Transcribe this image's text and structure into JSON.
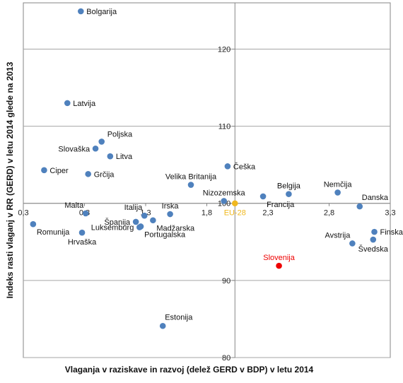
{
  "chart_data": {
    "type": "scatter",
    "title": "",
    "xlabel": "Vlaganja v raziskave in razvoj (delež GERD v BDP) v letu 2014",
    "ylabel": "Indeks rasti vlaganj v RR (GERD) v letu 2014 glede na 2013",
    "xlim": [
      0.3,
      3.3
    ],
    "ylim": [
      80,
      126
    ],
    "x_axis_crosses_at_y": 100,
    "y_axis_crosses_at_x": 2.03,
    "x_ticks": [
      0.3,
      0.8,
      1.3,
      1.8,
      2.3,
      2.8,
      3.3
    ],
    "x_tick_labels": [
      "0,3",
      "0,8",
      "1,3",
      "1,8",
      "2,3",
      "2,8",
      "3,3"
    ],
    "y_ticks": [
      80,
      90,
      100,
      110,
      120
    ],
    "y_tick_labels": [
      "80",
      "90",
      "100",
      "110",
      "120"
    ],
    "grid": "horizontal",
    "colors": {
      "default": "#4f81bd",
      "eu": "#f0b81f",
      "highlight": "#ee0000",
      "grid": "#a6a6a6",
      "axis": "#868686"
    },
    "series": [
      {
        "points": [
          {
            "label": "Bolgarija",
            "x": 0.77,
            "y": 124.9,
            "color": "#4f81bd",
            "anchor": "right"
          },
          {
            "label": "Latvija",
            "x": 0.66,
            "y": 113.0,
            "color": "#4f81bd",
            "anchor": "right"
          },
          {
            "label": "Poljska",
            "x": 0.94,
            "y": 108.0,
            "color": "#4f81bd",
            "anchor": "right-up"
          },
          {
            "label": "Slovaška",
            "x": 0.89,
            "y": 107.1,
            "color": "#4f81bd",
            "anchor": "left"
          },
          {
            "label": "Litva",
            "x": 1.01,
            "y": 106.1,
            "color": "#4f81bd",
            "anchor": "right"
          },
          {
            "label": "Ciper",
            "x": 0.47,
            "y": 104.3,
            "color": "#4f81bd",
            "anchor": "right"
          },
          {
            "label": "Grčija",
            "x": 0.83,
            "y": 103.8,
            "color": "#4f81bd",
            "anchor": "right"
          },
          {
            "label": "Velika Britanija",
            "x": 1.67,
            "y": 102.4,
            "color": "#4f81bd",
            "anchor": "above"
          },
          {
            "label": "Češka",
            "x": 1.97,
            "y": 104.8,
            "color": "#4f81bd",
            "anchor": "right"
          },
          {
            "label": "Nizozemska",
            "x": 1.94,
            "y": 100.3,
            "color": "#4f81bd",
            "anchor": "above"
          },
          {
            "label": "Belgija",
            "x": 2.47,
            "y": 101.2,
            "color": "#4f81bd",
            "anchor": "above"
          },
          {
            "label": "Francija",
            "x": 2.26,
            "y": 100.9,
            "color": "#4f81bd",
            "anchor": "below-right"
          },
          {
            "label": "Nemčija",
            "x": 2.87,
            "y": 101.4,
            "color": "#4f81bd",
            "anchor": "above"
          },
          {
            "label": "Danska",
            "x": 3.05,
            "y": 99.6,
            "color": "#4f81bd",
            "anchor": "above-right"
          },
          {
            "label": "EU-28",
            "x": 2.03,
            "y": 100.0,
            "color": "#f0b81f",
            "anchor": "below"
          },
          {
            "label": "Malta",
            "x": 0.81,
            "y": 98.7,
            "color": "#4f81bd",
            "anchor": "above-left"
          },
          {
            "label": "Irska",
            "x": 1.5,
            "y": 98.6,
            "color": "#4f81bd",
            "anchor": "above"
          },
          {
            "label": "Italija",
            "x": 1.29,
            "y": 98.4,
            "color": "#4f81bd",
            "anchor": "above-left"
          },
          {
            "label": "Španija",
            "x": 1.22,
            "y": 97.6,
            "color": "#4f81bd",
            "anchor": "left"
          },
          {
            "label": "Madžarska",
            "x": 1.36,
            "y": 97.8,
            "color": "#4f81bd",
            "anchor": "below-right"
          },
          {
            "label": "Portugalska",
            "x": 1.26,
            "y": 97.0,
            "color": "#4f81bd",
            "anchor": "below-right"
          },
          {
            "label": "Romunija",
            "x": 0.38,
            "y": 97.3,
            "color": "#4f81bd",
            "anchor": "below-right"
          },
          {
            "label": "Luksemburg",
            "x": 1.25,
            "y": 96.9,
            "color": "#4f81bd",
            "anchor": "left"
          },
          {
            "label": "Hrvaška",
            "x": 0.78,
            "y": 96.2,
            "color": "#4f81bd",
            "anchor": "below"
          },
          {
            "label": "Avstrija",
            "x": 2.99,
            "y": 94.8,
            "color": "#4f81bd",
            "anchor": "above-left"
          },
          {
            "label": "Finska",
            "x": 3.17,
            "y": 96.3,
            "color": "#4f81bd",
            "anchor": "right"
          },
          {
            "label": "Švedska",
            "x": 3.16,
            "y": 95.3,
            "color": "#4f81bd",
            "anchor": "below"
          },
          {
            "label": "Slovenija",
            "x": 2.39,
            "y": 91.9,
            "color": "#ee0000",
            "anchor": "above",
            "label_color": "#ee0000"
          },
          {
            "label": "Estonija",
            "x": 1.44,
            "y": 84.1,
            "color": "#4f81bd",
            "anchor": "above-right"
          }
        ]
      }
    ]
  }
}
